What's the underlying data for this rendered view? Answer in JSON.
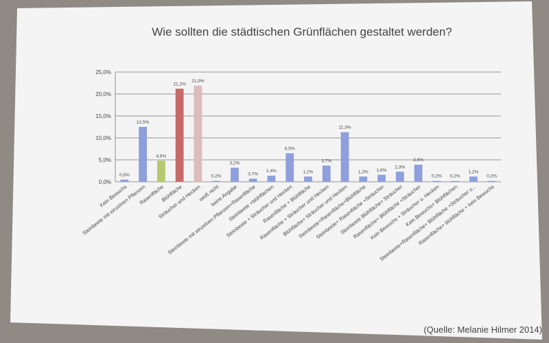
{
  "chart_data": {
    "type": "bar",
    "title": "Wie sollten die städtischen Grünflächen gestaltet werden?",
    "source": "(Quelle: Melanie Hilmer 2014)",
    "categories": [
      "Kein Bewuchs",
      "Steinbeete mit einzelnen Pflanzen",
      "Rasenfläche",
      "Blühfläche",
      "Sträucher und Hecken",
      "weiß nicht",
      "keine Angabe",
      "Steinbeete mit einzelnen Pflanzen+Rasenfläche",
      "Steinbeete +blühflächen",
      "Steinbeete + Sträucher und Hecken",
      "Rasenfläche + Blühfläche",
      "Rasenfläche + Sträucher und Hecken",
      "Blühfläche+ Sträucher und Hecken",
      "Steinbeete+Rasenfläche+Blühfläche",
      "Steinbeete+ Rasenfläche +Sträucher",
      "Steinbeete Blühfläche+ Sträucher",
      "Rasenfläche+ Blühfläche +Sträucher",
      "Kein Bewuchs + Sträucher u. Hecken",
      "Kein Bewuchs+ Blühflächen",
      "Steinbeete+Rasenfläche+ Blühfläche +Sträucher u...",
      "Rasenfläche+ blühfläche + kein Bewuchs"
    ],
    "values": [
      0.5,
      12.5,
      4.8,
      21.2,
      21.9,
      0.2,
      3.2,
      0.7,
      1.4,
      6.5,
      1.2,
      3.7,
      11.3,
      1.2,
      1.6,
      2.3,
      3.9,
      0.2,
      0.2,
      1.2,
      0.2
    ],
    "value_labels": [
      "0,5%",
      "12,5%",
      "4,8%",
      "21,2%",
      "21,9%",
      "0,2%",
      "3,2%",
      "0,7%",
      "1,4%",
      "6,5%",
      "1,2%",
      "3,7%",
      "11,3%",
      "1,2%",
      "1,6%",
      "2,3%",
      "3,9%",
      "0,2%",
      "0,2%",
      "1,2%",
      "0,2%"
    ],
    "colors": [
      "#8e9fdc",
      "#8e9fdc",
      "#b6c96c",
      "#c76a6a",
      "#dcbcbc",
      "#8e9fdc",
      "#8e9fdc",
      "#8e9fdc",
      "#8e9fdc",
      "#8e9fdc",
      "#8e9fdc",
      "#8e9fdc",
      "#8e9fdc",
      "#8e9fdc",
      "#8e9fdc",
      "#8e9fdc",
      "#8e9fdc",
      "#8e9fdc",
      "#8e9fdc",
      "#8e9fdc",
      "#8e9fdc"
    ],
    "ylim": [
      0,
      25
    ],
    "yticks": [
      {
        "value": 0,
        "label": "0,0%"
      },
      {
        "value": 5,
        "label": "5,0%"
      },
      {
        "value": 10,
        "label": "10,0%"
      },
      {
        "value": 15,
        "label": "15,0%"
      },
      {
        "value": 20,
        "label": "20,0%"
      },
      {
        "value": 25,
        "label": "25,0%"
      }
    ],
    "grid": true
  }
}
